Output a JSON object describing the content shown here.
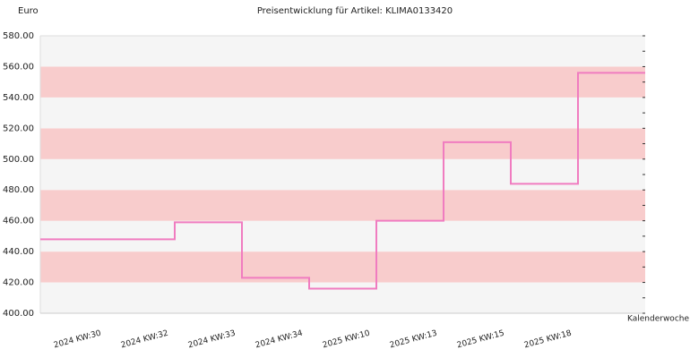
{
  "chart_data": {
    "type": "step",
    "title": "Preisentwicklung für Artikel: KLIMA0133420",
    "y_label": "Euro",
    "x_label": "Kalenderwoche",
    "categories": [
      "2024 KW:30",
      "2024 KW:32",
      "2024 KW:33",
      "2024 KW:34",
      "2025 KW:10",
      "2025 KW:13",
      "2025 KW:15",
      "2025 KW:18",
      null
    ],
    "values": [
      448,
      448,
      459,
      423,
      416,
      460,
      511,
      484,
      556
    ],
    "color": "#f07cc0",
    "stripe_colors": [
      "#f5f5f5",
      "#f8cccc"
    ],
    "ylim": [
      400,
      580
    ],
    "yticks": [
      {
        "value": 400,
        "label": "400.00"
      },
      {
        "value": 420,
        "label": "420.00"
      },
      {
        "value": 440,
        "label": "440.00"
      },
      {
        "value": 460,
        "label": "460.00"
      },
      {
        "value": 480,
        "label": "480.00"
      },
      {
        "value": 500,
        "label": "500.00"
      },
      {
        "value": 520,
        "label": "520.00"
      },
      {
        "value": 540,
        "label": "540.00"
      },
      {
        "value": 560,
        "label": "560.00"
      },
      {
        "value": 580,
        "label": "580.00"
      }
    ],
    "minor_yticks": [
      410,
      430,
      450,
      470,
      490,
      510,
      530,
      550,
      570
    ]
  }
}
